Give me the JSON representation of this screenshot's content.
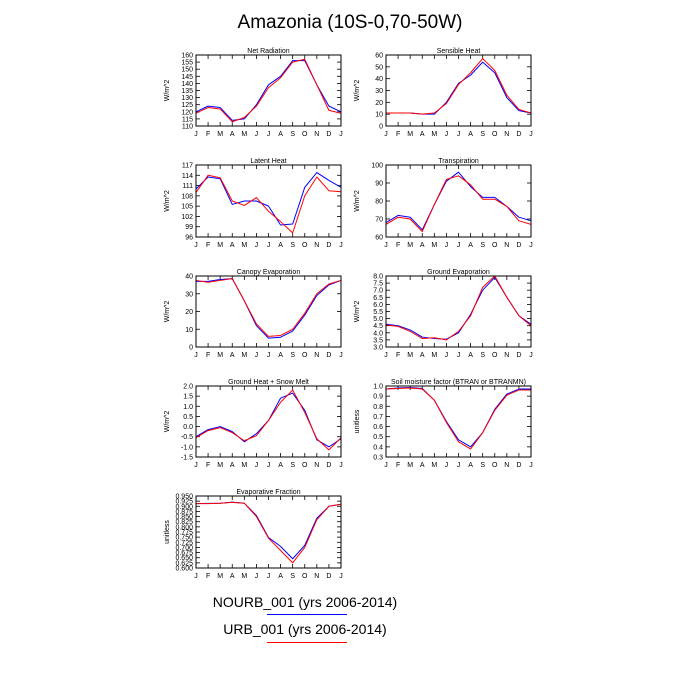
{
  "title": "Amazonia (10S-0,70-50W)",
  "colors": {
    "series_a": "#0000ff",
    "series_b": "#ff0000",
    "axis": "#000000"
  },
  "legend": [
    {
      "label": "NOURB_001 (yrs 2006-2014)",
      "color": "#0000ff"
    },
    {
      "label": "URB_001 (yrs 2006-2014)",
      "color": "#ff0000"
    }
  ],
  "chart_data": [
    {
      "type": "line",
      "title": "Net Radiation",
      "xlabel": "",
      "ylabel": "W/m^2",
      "categories": [
        "J",
        "F",
        "M",
        "A",
        "M",
        "J",
        "J",
        "A",
        "S",
        "O",
        "N",
        "D",
        "J"
      ],
      "ylim": [
        110,
        160
      ],
      "yticks": [
        110,
        115,
        120,
        125,
        130,
        135,
        140,
        145,
        150,
        155,
        160
      ],
      "ytick_labels": [
        "110",
        "115",
        "120",
        "125",
        "130",
        "135",
        "140",
        "145",
        "150",
        "155",
        "160"
      ],
      "series": [
        {
          "name": "NOURB_001 (yrs 2006-2014)",
          "values": [
            120,
            124,
            123,
            114,
            115,
            125,
            139,
            145,
            156,
            156,
            139,
            124,
            120
          ]
        },
        {
          "name": "URB_001 (yrs 2006-2014)",
          "values": [
            119,
            123,
            122,
            113,
            116,
            124,
            137,
            144,
            155,
            157,
            139,
            121,
            119
          ]
        }
      ]
    },
    {
      "type": "line",
      "title": "Sensible Heat",
      "xlabel": "",
      "ylabel": "W/m^2",
      "categories": [
        "J",
        "F",
        "M",
        "A",
        "M",
        "J",
        "J",
        "A",
        "S",
        "O",
        "N",
        "D",
        "J"
      ],
      "ylim": [
        0,
        60
      ],
      "yticks": [
        0,
        10,
        20,
        30,
        40,
        50,
        60
      ],
      "ytick_labels": [
        "0",
        "10",
        "20",
        "30",
        "40",
        "50",
        "60"
      ],
      "series": [
        {
          "name": "NOURB_001 (yrs 2006-2014)",
          "values": [
            11,
            11,
            11,
            10,
            10,
            20,
            36,
            43,
            54,
            45,
            24,
            13,
            11
          ]
        },
        {
          "name": "URB_001 (yrs 2006-2014)",
          "values": [
            11,
            11,
            11,
            10,
            11,
            19,
            35,
            45,
            57,
            47,
            26,
            14,
            11
          ]
        }
      ]
    },
    {
      "type": "line",
      "title": "Latent Heat",
      "xlabel": "",
      "ylabel": "W/m^2",
      "categories": [
        "J",
        "F",
        "M",
        "A",
        "M",
        "J",
        "J",
        "A",
        "S",
        "O",
        "N",
        "D",
        "J"
      ],
      "ylim": [
        96,
        117
      ],
      "yticks": [
        96,
        99,
        102,
        105,
        108,
        111,
        114,
        117
      ],
      "ytick_labels": [
        "96",
        "99",
        "102",
        "105",
        "108",
        "111",
        "114",
        "117"
      ],
      "series": [
        {
          "name": "NOURB_001 (yrs 2006-2014)",
          "values": [
            110,
            113.5,
            113,
            105.5,
            106.5,
            106.5,
            105,
            99.5,
            99.8,
            110.5,
            114.8,
            112.5,
            110.5
          ]
        },
        {
          "name": "URB_001 (yrs 2006-2014)",
          "values": [
            109,
            114,
            113.3,
            106.5,
            105.2,
            107.5,
            103.5,
            100.5,
            97.2,
            108,
            113.5,
            109.5,
            109.2
          ]
        }
      ]
    },
    {
      "type": "line",
      "title": "Transpiration",
      "xlabel": "",
      "ylabel": "W/m^2",
      "categories": [
        "J",
        "F",
        "M",
        "A",
        "M",
        "J",
        "J",
        "A",
        "S",
        "O",
        "N",
        "D",
        "J"
      ],
      "ylim": [
        60,
        100
      ],
      "yticks": [
        60,
        70,
        80,
        90,
        100
      ],
      "ytick_labels": [
        "60",
        "70",
        "80",
        "90",
        "100"
      ],
      "series": [
        {
          "name": "NOURB_001 (yrs 2006-2014)",
          "values": [
            68,
            72,
            71,
            64,
            78,
            91,
            96,
            88,
            82,
            82,
            77,
            71,
            69
          ]
        },
        {
          "name": "URB_001 (yrs 2006-2014)",
          "values": [
            67,
            71,
            70,
            63,
            78,
            92,
            94,
            89,
            81,
            81,
            77,
            69,
            67
          ]
        }
      ]
    },
    {
      "type": "line",
      "title": "Canopy Evaporation",
      "xlabel": "",
      "ylabel": "W/m^2",
      "categories": [
        "J",
        "F",
        "M",
        "A",
        "M",
        "J",
        "J",
        "A",
        "S",
        "O",
        "N",
        "D",
        "J"
      ],
      "ylim": [
        0,
        40
      ],
      "yticks": [
        0,
        10,
        20,
        30,
        40
      ],
      "ytick_labels": [
        "0",
        "10",
        "20",
        "30",
        "40"
      ],
      "series": [
        {
          "name": "NOURB_001 (yrs 2006-2014)",
          "values": [
            37,
            37,
            38,
            38.5,
            26,
            12,
            5,
            5.5,
            9,
            18,
            29,
            35,
            37.5
          ]
        },
        {
          "name": "URB_001 (yrs 2006-2014)",
          "values": [
            37.5,
            36.5,
            37.5,
            38.5,
            26,
            13,
            6,
            6.5,
            10,
            19,
            30,
            35.5,
            37.5
          ]
        }
      ]
    },
    {
      "type": "line",
      "title": "Ground Evaporation",
      "xlabel": "",
      "ylabel": "W/m^2",
      "categories": [
        "J",
        "F",
        "M",
        "A",
        "M",
        "J",
        "J",
        "A",
        "S",
        "O",
        "N",
        "D",
        "J"
      ],
      "ylim": [
        3,
        8
      ],
      "yticks": [
        3,
        3.5,
        4,
        4.5,
        5,
        5.5,
        6,
        6.5,
        7,
        7.5,
        8
      ],
      "ytick_labels": [
        "3.0",
        "3.5",
        "4.0",
        "4.5",
        "5.0",
        "5.5",
        "6.0",
        "6.5",
        "7.0",
        "7.5",
        "8.0"
      ],
      "series": [
        {
          "name": "NOURB_001 (yrs 2006-2014)",
          "values": [
            4.6,
            4.5,
            4.2,
            3.7,
            3.6,
            3.55,
            4.0,
            5.3,
            7.0,
            7.9,
            6.5,
            5.2,
            4.6
          ]
        },
        {
          "name": "URB_001 (yrs 2006-2014)",
          "values": [
            4.55,
            4.45,
            4.1,
            3.6,
            3.65,
            3.5,
            4.1,
            5.2,
            7.2,
            8.0,
            6.5,
            5.2,
            4.5
          ]
        }
      ]
    },
    {
      "type": "line",
      "title": "Ground Heat + Snow Melt",
      "xlabel": "",
      "ylabel": "W/m^2",
      "categories": [
        "J",
        "F",
        "M",
        "A",
        "M",
        "J",
        "J",
        "A",
        "S",
        "O",
        "N",
        "D",
        "J"
      ],
      "ylim": [
        -1.5,
        2.0
      ],
      "yticks": [
        -1.5,
        -1,
        -0.5,
        0,
        0.5,
        1,
        1.5,
        2
      ],
      "ytick_labels": [
        "-1.5",
        "-1.0",
        "-0.5",
        "0.0",
        "0.5",
        "1.0",
        "1.5",
        "2.0"
      ],
      "series": [
        {
          "name": "NOURB_001 (yrs 2006-2014)",
          "values": [
            -0.5,
            -0.15,
            0.0,
            -0.25,
            -0.75,
            -0.35,
            0.3,
            1.4,
            1.65,
            0.8,
            -0.65,
            -1.0,
            -0.6
          ]
        },
        {
          "name": "URB_001 (yrs 2006-2014)",
          "values": [
            -0.55,
            -0.2,
            -0.05,
            -0.3,
            -0.7,
            -0.45,
            0.3,
            1.2,
            1.8,
            0.7,
            -0.6,
            -1.15,
            -0.55
          ]
        }
      ]
    },
    {
      "type": "line",
      "title": "Soil moisture factor (BTRAN or BTRANMN)",
      "xlabel": "",
      "ylabel": "unitless",
      "categories": [
        "J",
        "F",
        "M",
        "A",
        "M",
        "J",
        "J",
        "A",
        "S",
        "O",
        "N",
        "D",
        "J"
      ],
      "ylim": [
        0.3,
        1.0
      ],
      "yticks": [
        0.3,
        0.4,
        0.5,
        0.6,
        0.7,
        0.8,
        0.9,
        1.0
      ],
      "ytick_labels": [
        "0.3",
        "0.4",
        "0.5",
        "0.6",
        "0.7",
        "0.8",
        "0.9",
        "1.0"
      ],
      "series": [
        {
          "name": "NOURB_001 (yrs 2006-2014)",
          "values": [
            0.97,
            0.98,
            0.985,
            0.975,
            0.86,
            0.65,
            0.47,
            0.4,
            0.54,
            0.77,
            0.92,
            0.97,
            0.97
          ]
        },
        {
          "name": "URB_001 (yrs 2006-2014)",
          "values": [
            0.97,
            0.975,
            0.98,
            0.97,
            0.86,
            0.64,
            0.45,
            0.38,
            0.54,
            0.76,
            0.91,
            0.96,
            0.96
          ]
        }
      ]
    },
    {
      "type": "line",
      "title": "Evaporative Fraction",
      "xlabel": "",
      "ylabel": "unitless",
      "categories": [
        "J",
        "F",
        "M",
        "A",
        "M",
        "J",
        "J",
        "A",
        "S",
        "O",
        "N",
        "D",
        "J"
      ],
      "ylim": [
        0.6,
        0.95
      ],
      "yticks": [
        0.6,
        0.625,
        0.65,
        0.675,
        0.7,
        0.725,
        0.75,
        0.775,
        0.8,
        0.825,
        0.85,
        0.875,
        0.9,
        0.925,
        0.95
      ],
      "ytick_labels": [
        "0.600",
        "0.625",
        "0.650",
        "0.675",
        "0.700",
        "0.725",
        "0.750",
        "0.775",
        "0.800",
        "0.825",
        "0.850",
        "0.875",
        "0.900",
        "0.925",
        "0.950"
      ],
      "series": [
        {
          "name": "NOURB_001 (yrs 2006-2014)",
          "values": [
            0.913,
            0.914,
            0.915,
            0.92,
            0.915,
            0.855,
            0.748,
            0.705,
            0.645,
            0.71,
            0.842,
            0.9,
            0.91
          ]
        },
        {
          "name": "URB_001 (yrs 2006-2014)",
          "values": [
            0.913,
            0.913,
            0.915,
            0.919,
            0.915,
            0.85,
            0.745,
            0.685,
            0.625,
            0.7,
            0.835,
            0.9,
            0.91
          ]
        }
      ]
    }
  ]
}
